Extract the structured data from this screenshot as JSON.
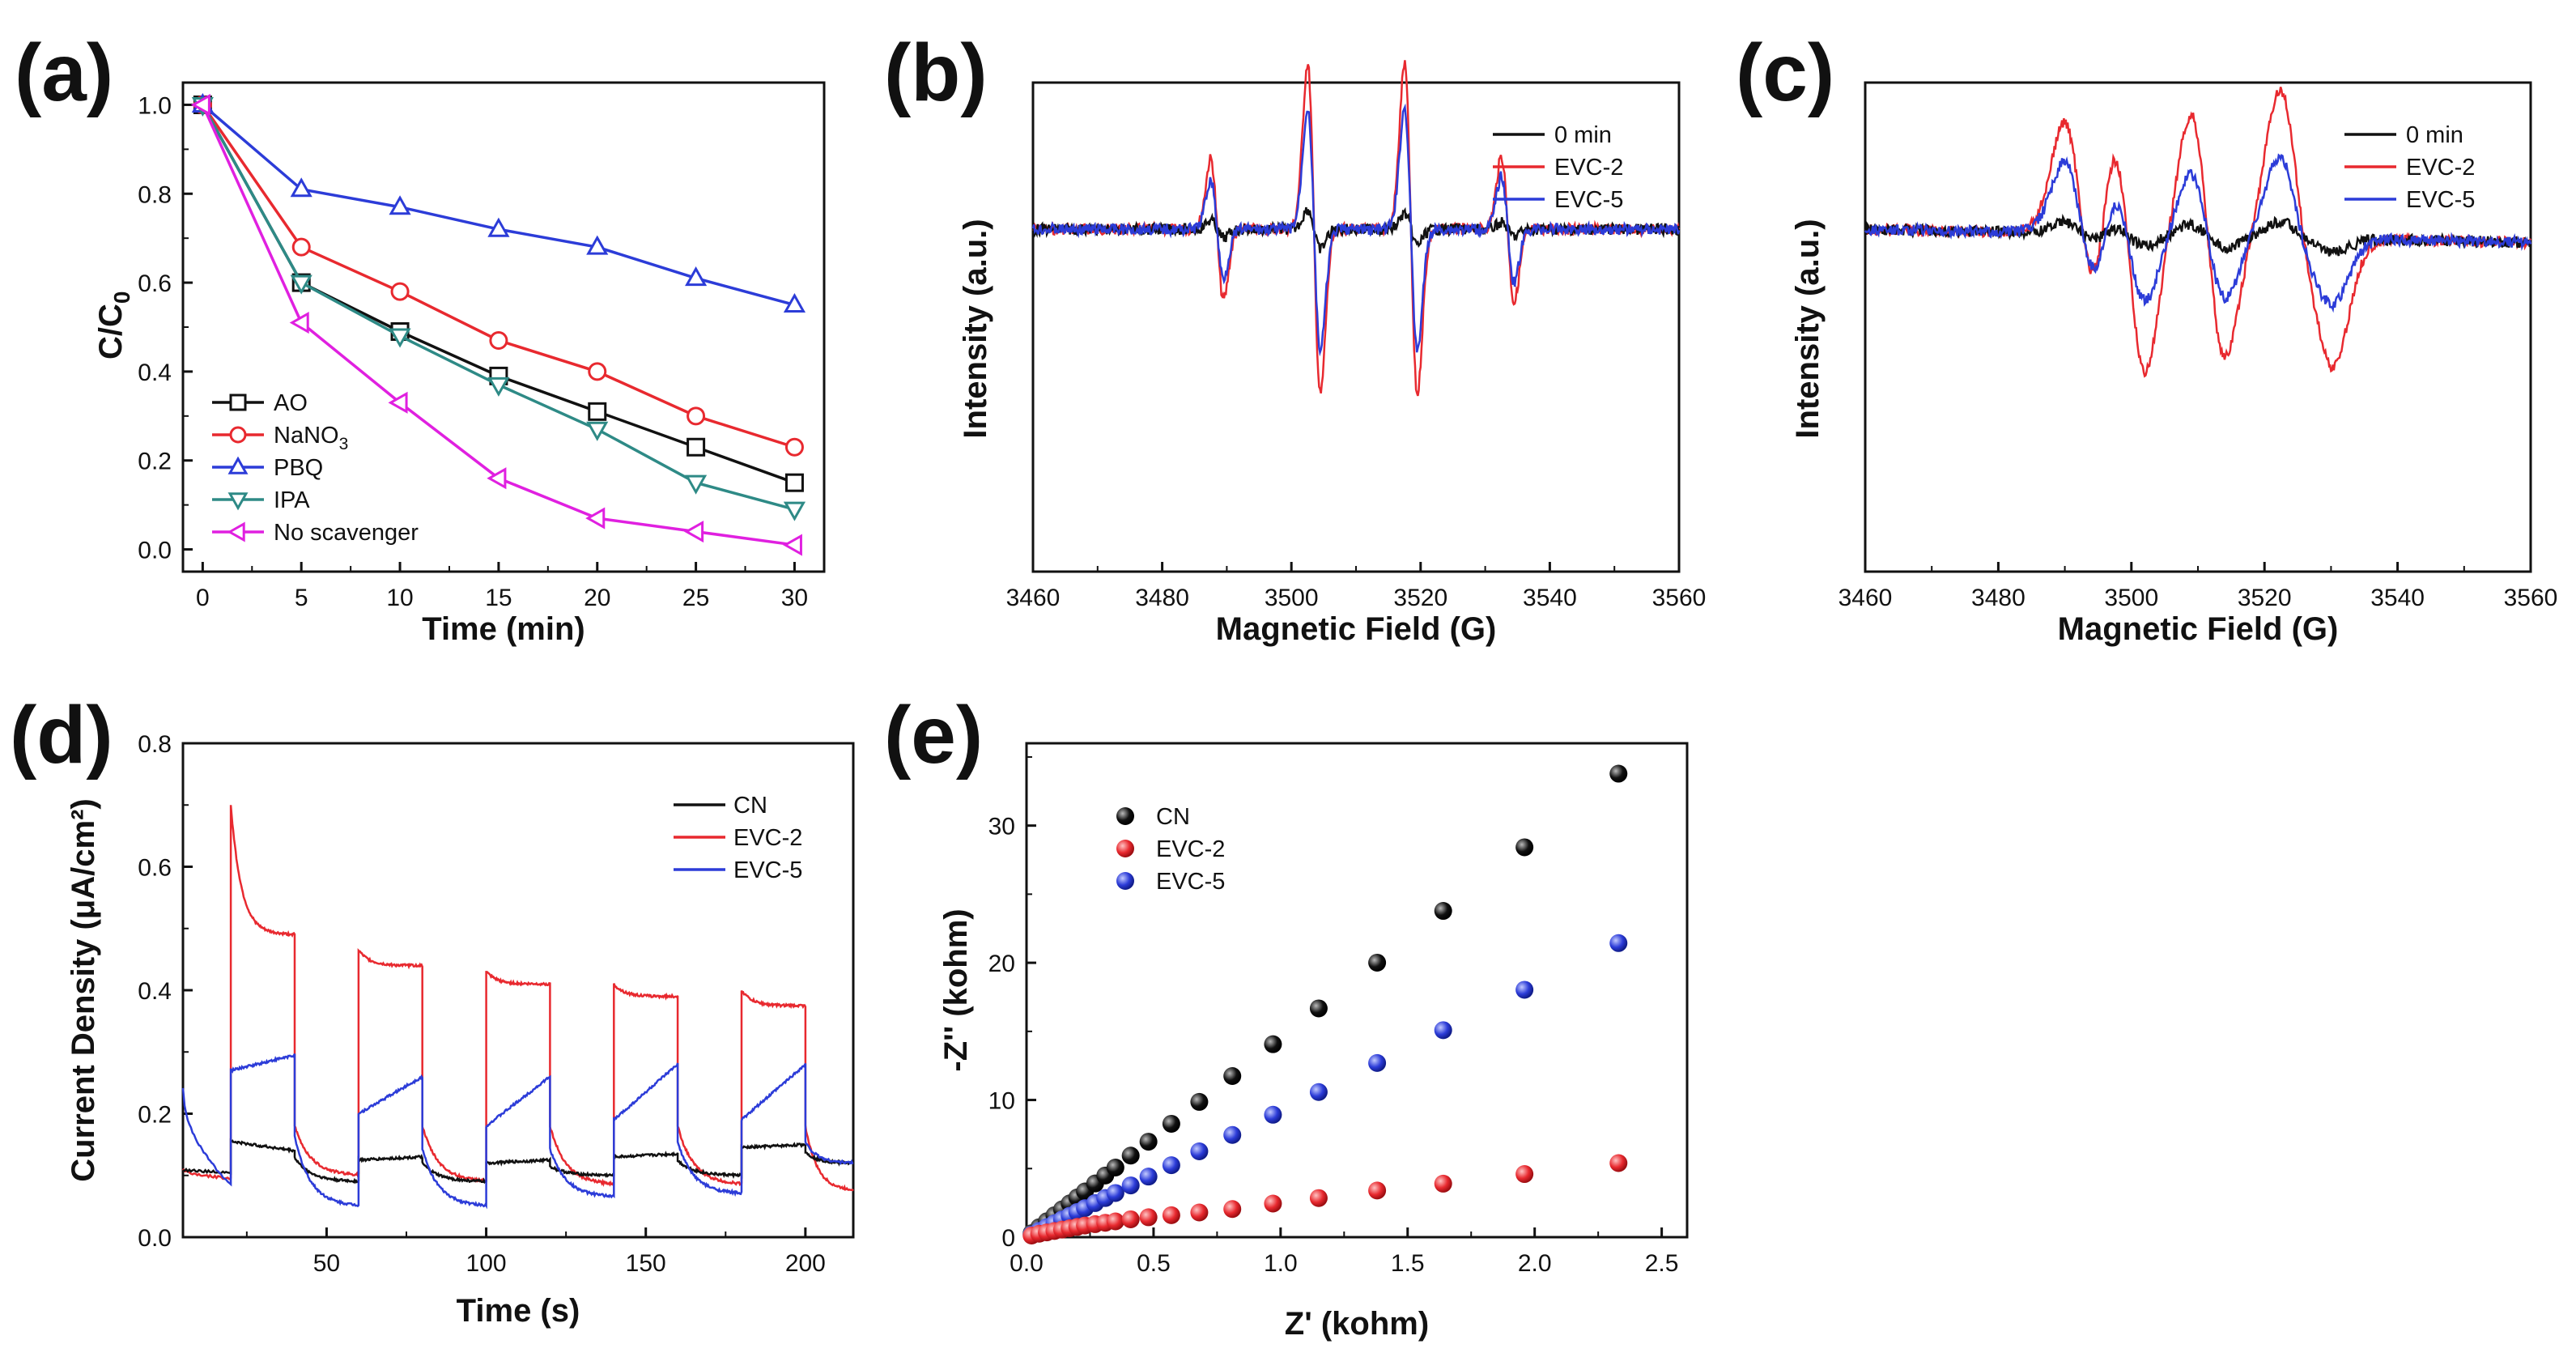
{
  "chart_data": [
    {
      "id": "a",
      "panel_label": "(a)",
      "type": "line",
      "xlabel": "Time (min)",
      "ylabel": "C/C",
      "ylabel_sub": "0",
      "xlim": [
        -1,
        31.5
      ],
      "ylim": [
        -0.05,
        1.05
      ],
      "xticks": [
        0,
        5,
        10,
        15,
        20,
        25,
        30
      ],
      "yticks": [
        0.0,
        0.2,
        0.4,
        0.6,
        0.8,
        1.0
      ],
      "xtick_labels": [
        "0",
        "5",
        "10",
        "15",
        "20",
        "25",
        "30"
      ],
      "ytick_labels": [
        "0.0",
        "0.2",
        "0.4",
        "0.6",
        "0.8",
        "1.0"
      ],
      "legend_position": "bottom-left",
      "x": [
        0,
        5,
        10,
        15,
        20,
        25,
        30
      ],
      "series": [
        {
          "name": "AO",
          "color": "#111111",
          "marker": "square",
          "values": [
            1.0,
            0.6,
            0.49,
            0.39,
            0.31,
            0.23,
            0.15
          ]
        },
        {
          "name": "NaNO",
          "name_sub": "3",
          "color": "#e8292f",
          "marker": "circle",
          "values": [
            1.0,
            0.68,
            0.58,
            0.47,
            0.4,
            0.3,
            0.23
          ]
        },
        {
          "name": "PBQ",
          "color": "#2c3cd8",
          "marker": "triangle-up",
          "values": [
            1.0,
            0.81,
            0.77,
            0.72,
            0.68,
            0.61,
            0.55
          ]
        },
        {
          "name": "IPA",
          "color": "#2e8a86",
          "marker": "triangle-down",
          "values": [
            1.0,
            0.6,
            0.48,
            0.37,
            0.27,
            0.15,
            0.09
          ]
        },
        {
          "name": "No scavenger",
          "color": "#e020e0",
          "marker": "triangle-left",
          "values": [
            1.0,
            0.51,
            0.33,
            0.16,
            0.07,
            0.04,
            0.01
          ]
        }
      ]
    },
    {
      "id": "b",
      "panel_label": "(b)",
      "type": "line",
      "xlabel": "Magnetic Field (G)",
      "ylabel": "Intensity (a.u.)",
      "xlim": [
        3460,
        3560
      ],
      "xticks": [
        3460,
        3480,
        3500,
        3520,
        3540,
        3560
      ],
      "xtick_labels": [
        "3460",
        "3480",
        "3500",
        "3520",
        "3540",
        "3560"
      ],
      "legend_position": "top-right",
      "pattern": "DMPO-•OH quartet 1:2:2:1, lines at 3488.5, 3503.5, 3518.5, 3533.5 G",
      "series": [
        {
          "name": "0 min",
          "color": "#111111",
          "peak_amplitudes": [
            0.04,
            0.09,
            0.07,
            0.03
          ]
        },
        {
          "name": "EVC-2",
          "color": "#e8292f",
          "peak_amplitudes": [
            0.32,
            0.75,
            0.75,
            0.33
          ]
        },
        {
          "name": "EVC-5",
          "color": "#2c3cd8",
          "peak_amplitudes": [
            0.22,
            0.55,
            0.55,
            0.24
          ]
        }
      ]
    },
    {
      "id": "c",
      "panel_label": "(c)",
      "type": "line",
      "xlabel": "Magnetic Field (G)",
      "ylabel": "Intensity (a.u.)",
      "xlim": [
        3460,
        3560
      ],
      "xticks": [
        3460,
        3480,
        3500,
        3520,
        3540,
        3560
      ],
      "xtick_labels": [
        "3460",
        "3480",
        "3500",
        "3520",
        "3540",
        "3560"
      ],
      "legend_position": "top-right",
      "pattern": "DMPO-•O2⁻ sextet, lines at 3492.5, 3499.5, 3511.5, 3524.5, 3528.5 G",
      "series": [
        {
          "name": "0 min",
          "color": "#111111",
          "peak_amplitudes": [
            0.05,
            0.05,
            0.05,
            0.06,
            0.05
          ]
        },
        {
          "name": "EVC-2",
          "color": "#e8292f",
          "peak_amplitudes": [
            0.5,
            0.62,
            0.55,
            0.58,
            0.45
          ]
        },
        {
          "name": "EVC-5",
          "color": "#2c3cd8",
          "peak_amplitudes": [
            0.32,
            0.3,
            0.28,
            0.32,
            0.22
          ]
        }
      ]
    },
    {
      "id": "d",
      "panel_label": "(d)",
      "type": "line",
      "xlabel": "Time (s)",
      "ylabel": "Current Density (μA/cm²)",
      "xlim": [
        5,
        215
      ],
      "ylim": [
        0.0,
        0.8
      ],
      "xticks": [
        50,
        100,
        150,
        200
      ],
      "xtick_labels": [
        "50",
        "100",
        "150",
        "200"
      ],
      "yticks": [
        0.0,
        0.2,
        0.4,
        0.6,
        0.8
      ],
      "ytick_labels": [
        "0.0",
        "0.2",
        "0.4",
        "0.6",
        "0.8"
      ],
      "legend_position": "top-right",
      "light_on_intervals": [
        [
          20,
          40
        ],
        [
          60,
          80
        ],
        [
          100,
          120
        ],
        [
          140,
          160
        ],
        [
          180,
          200
        ]
      ],
      "series": [
        {
          "name": "CN",
          "color": "#111111",
          "dark": [
            0.11,
            0.09,
            0.09,
            0.1,
            0.1,
            0.12
          ],
          "on_start": [
            0.155,
            0.125,
            0.12,
            0.13,
            0.145
          ],
          "on_end": [
            0.14,
            0.13,
            0.125,
            0.135,
            0.15
          ]
        },
        {
          "name": "EVC-2",
          "color": "#e8292f",
          "dark": [
            0.11,
            0.1,
            0.09,
            0.085,
            0.085,
            0.075
          ],
          "on_start": [
            0.7,
            0.465,
            0.43,
            0.41,
            0.4
          ],
          "on_end": [
            0.49,
            0.44,
            0.41,
            0.39,
            0.375
          ]
        },
        {
          "name": "EVC-5",
          "color": "#2c3cd8",
          "dark": [
            0.24,
            0.05,
            0.05,
            0.065,
            0.07,
            0.12
          ],
          "on_start": [
            0.27,
            0.2,
            0.18,
            0.19,
            0.19
          ],
          "on_end": [
            0.295,
            0.26,
            0.26,
            0.28,
            0.28
          ]
        }
      ]
    },
    {
      "id": "e",
      "panel_label": "(e)",
      "type": "scatter",
      "xlabel": "Z' (kohm)",
      "ylabel": "-Z'' (kohm)",
      "xlim": [
        0.0,
        2.6
      ],
      "ylim": [
        0,
        36
      ],
      "xticks": [
        0.0,
        0.5,
        1.0,
        1.5,
        2.0,
        2.5
      ],
      "xtick_labels": [
        "0.0",
        "0.5",
        "1.0",
        "1.5",
        "2.0",
        "2.5"
      ],
      "yticks": [
        0,
        10,
        20,
        30
      ],
      "ytick_labels": [
        "0",
        "10",
        "20",
        "30"
      ],
      "legend_position": "top-left",
      "x": [
        0.02,
        0.05,
        0.08,
        0.11,
        0.14,
        0.17,
        0.2,
        0.23,
        0.27,
        0.31,
        0.35,
        0.41,
        0.48,
        0.57,
        0.68,
        0.81,
        0.97,
        1.15,
        1.38,
        1.64,
        1.96,
        2.33
      ],
      "series": [
        {
          "name": "CN",
          "color": "#111111",
          "slope": 14.5
        },
        {
          "name": "EVC-2",
          "color": "#e8292f",
          "points_note": "log-like flattening",
          "values": [
            0.12,
            0.25,
            0.35,
            0.45,
            0.55,
            0.65,
            0.75,
            0.85,
            0.95,
            1.05,
            1.15,
            1.3,
            1.45,
            1.6,
            1.8,
            2.05,
            2.45,
            2.85,
            3.4,
            3.9,
            4.6,
            5.4
          ]
        },
        {
          "name": "EVC-5",
          "color": "#2c3cd8",
          "slope": 9.2
        }
      ]
    }
  ]
}
